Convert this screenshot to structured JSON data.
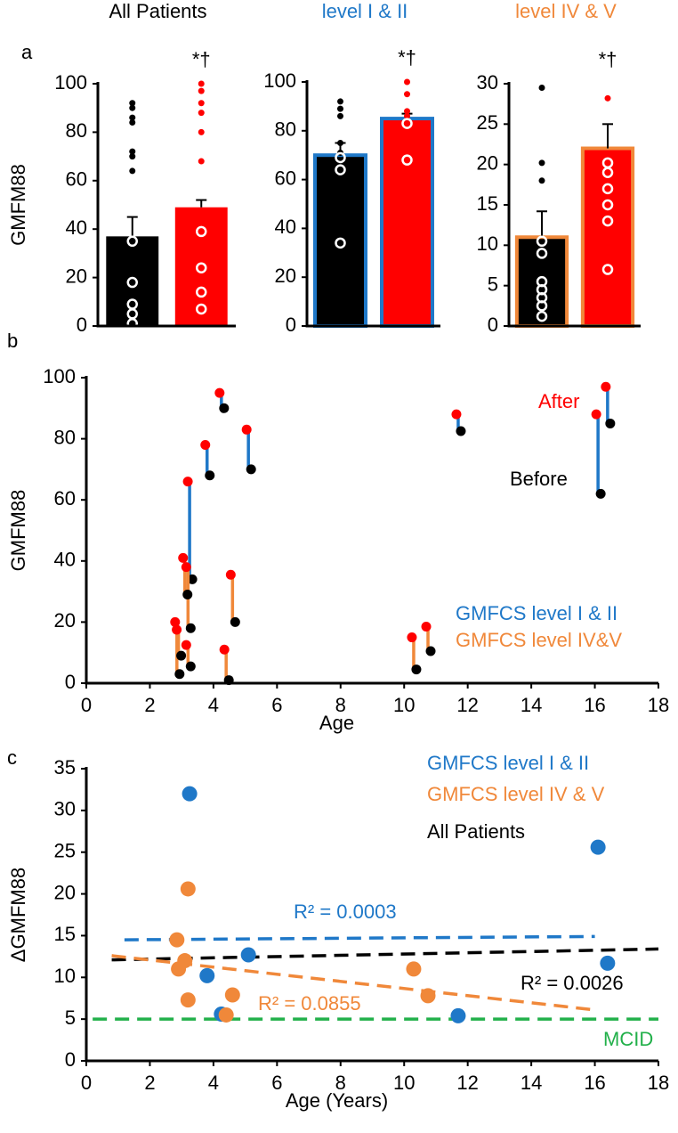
{
  "panel_labels": [
    "a",
    "b",
    "c"
  ],
  "chart_data": [
    {
      "type": "bar",
      "title": "All Patients",
      "title_color": "#000000",
      "ylabel": "GMFM88",
      "annotation": "*†",
      "values": [
        37,
        49
      ],
      "errors": [
        8,
        3
      ],
      "colors": [
        "#000000",
        "#ff0000"
      ],
      "edgecolor": null,
      "points": [
        [
          92,
          90,
          86,
          84,
          72,
          70,
          64,
          35,
          18,
          9,
          5,
          1
        ],
        [
          100,
          97,
          92,
          88,
          80,
          68,
          39,
          24,
          14,
          7
        ]
      ],
      "ylim": [
        0,
        100
      ],
      "yticks": [
        0,
        20,
        40,
        60,
        80,
        100
      ]
    },
    {
      "type": "bar",
      "title": "level I & II",
      "title_color": "#1f78c8",
      "annotation": "*†",
      "values": [
        70,
        85
      ],
      "errors": [
        5,
        2
      ],
      "colors": [
        "#000000",
        "#ff0000"
      ],
      "edgecolor": "#1f78c8",
      "points": [
        [
          92,
          89,
          86,
          75,
          71,
          69,
          64,
          34
        ],
        [
          100,
          95,
          88,
          86,
          83,
          68
        ]
      ],
      "ylim": [
        0,
        100
      ],
      "yticks": [
        0,
        20,
        40,
        60,
        80,
        100
      ]
    },
    {
      "type": "bar",
      "title": "level IV & V",
      "title_color": "#f0883a",
      "annotation": "*†",
      "values": [
        11,
        22
      ],
      "errors": [
        3.2,
        3
      ],
      "colors": [
        "#000000",
        "#ff0000"
      ],
      "edgecolor": "#f0883a",
      "points": [
        [
          29.5,
          20.2,
          18,
          10.5,
          9,
          5.5,
          4.5,
          3.5,
          2.5,
          1.2
        ],
        [
          28.2,
          20.2,
          19,
          17,
          15,
          13,
          7
        ]
      ],
      "ylim": [
        0,
        30
      ],
      "yticks": [
        0,
        5,
        10,
        15,
        20,
        25,
        30
      ]
    },
    {
      "type": "dumbbell",
      "xlabel": "Age",
      "ylabel": "GMFM88",
      "before_color": "#000000",
      "after_color": "#ff0000",
      "annotations": [
        {
          "text": "After",
          "color": "#ff0000"
        },
        {
          "text": "Before",
          "color": "#000000"
        }
      ],
      "series": [
        {
          "name": "GMFCS level I & II",
          "color": "#1f78c8",
          "x": [
            3.25,
            3.8,
            4.25,
            5.1,
            11.7,
            16.1,
            16.4
          ],
          "before": [
            34,
            68,
            90,
            70,
            82.5,
            62,
            85
          ],
          "after": [
            66,
            78,
            95,
            83,
            88,
            88,
            97
          ]
        },
        {
          "name": "GMFCS level IV&V",
          "color": "#f0883a",
          "x": [
            2.85,
            2.9,
            3.1,
            3.2,
            3.2,
            4.4,
            4.6,
            10.3,
            10.75
          ],
          "before": [
            3,
            9,
            29,
            18,
            5.5,
            1,
            20,
            4.5,
            10.5
          ],
          "after": [
            20,
            17.5,
            41,
            38,
            12.5,
            11,
            35.5,
            15,
            18.5
          ]
        }
      ],
      "xlim": [
        0,
        18
      ],
      "xticks": [
        0,
        2,
        4,
        6,
        8,
        10,
        12,
        14,
        16,
        18
      ],
      "ylim": [
        0,
        100
      ],
      "yticks": [
        0,
        20,
        40,
        60,
        80,
        100
      ]
    },
    {
      "type": "scatter",
      "xlabel": "Age (Years)",
      "ylabel": "ΔGMFM88",
      "series": [
        {
          "name": "GMFCS level I & II",
          "color": "#1f78c8",
          "x": [
            3.25,
            3.8,
            4.25,
            5.1,
            11.7,
            16.1,
            16.4
          ],
          "values": [
            32,
            10.2,
            5.6,
            12.7,
            5.4,
            25.6,
            11.7
          ]
        },
        {
          "name": "GMFCS level IV & V",
          "color": "#f0883a",
          "x": [
            2.85,
            2.9,
            3.1,
            3.2,
            3.2,
            4.4,
            4.6,
            10.3,
            10.75
          ],
          "values": [
            14.5,
            11,
            12,
            20.6,
            7.3,
            5.5,
            7.9,
            11,
            7.8
          ]
        }
      ],
      "trendlines": [
        {
          "label": "R² = 0.0003",
          "color": "#1f78c8",
          "x": [
            1.2,
            16
          ],
          "y": [
            14.5,
            14.9
          ]
        },
        {
          "name": "All Patients",
          "label": "R² = 0.0026",
          "color": "#000000",
          "x": [
            0.8,
            18
          ],
          "y": [
            12.1,
            13.4
          ]
        },
        {
          "label": "R² = 0.0855",
          "color": "#f0883a",
          "x": [
            0.8,
            16
          ],
          "y": [
            12.6,
            6.1
          ]
        },
        {
          "label": "MCID",
          "color": "#22b04a",
          "x": [
            0.2,
            18
          ],
          "y": [
            5,
            5
          ]
        }
      ],
      "xlim": [
        0,
        18
      ],
      "xticks": [
        0,
        2,
        4,
        6,
        8,
        10,
        12,
        14,
        16,
        18
      ],
      "ylim": [
        0,
        35
      ],
      "yticks": [
        0,
        5,
        10,
        15,
        20,
        25,
        30,
        35
      ]
    }
  ]
}
